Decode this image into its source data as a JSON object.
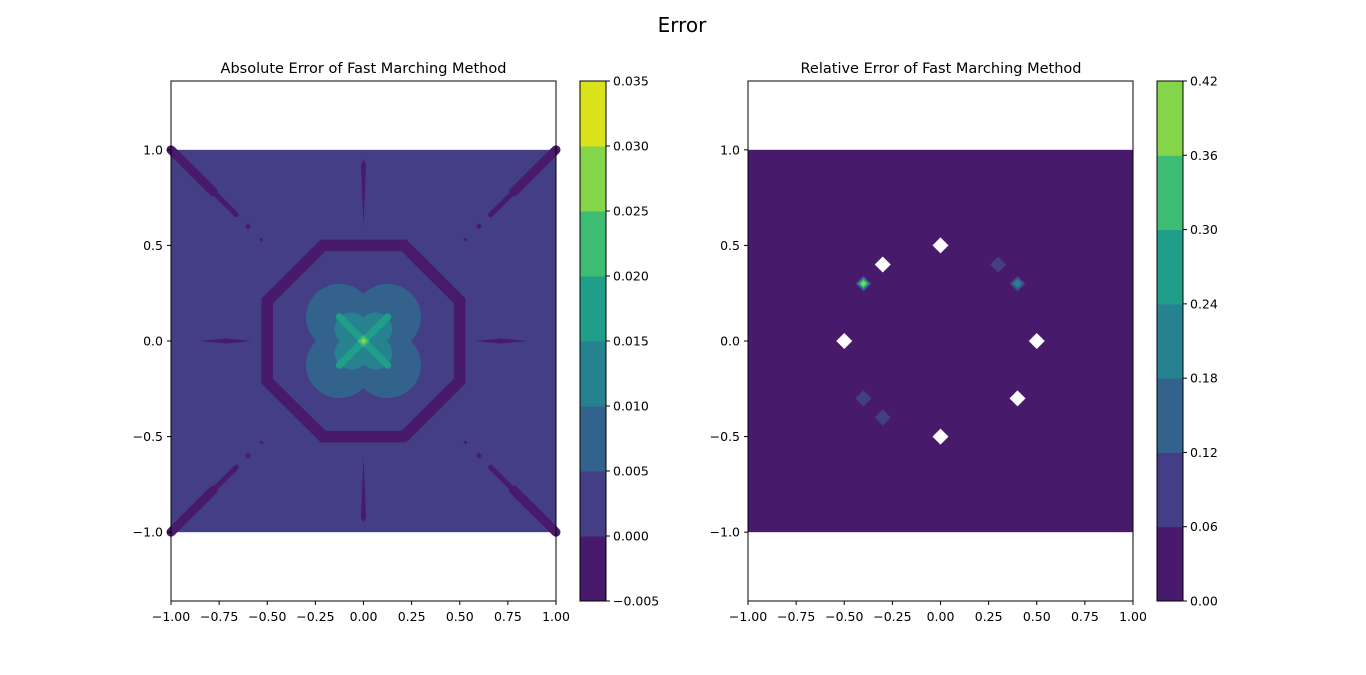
{
  "figure": {
    "suptitle": "Error"
  },
  "colors": {
    "viridis_levels": [
      "#440154",
      "#46327e",
      "#365c8d",
      "#277f8e",
      "#1fa187",
      "#4ac16d",
      "#a0da39",
      "#fde725"
    ],
    "contour_bands": [
      "#481a6c",
      "#433e85",
      "#33638d",
      "#26828e",
      "#1f9e89",
      "#3fbc73",
      "#85d54a",
      "#d9e21b"
    ]
  },
  "chart_data": [
    {
      "type": "contour",
      "title": "Absolute Error of Fast Marching Method",
      "xlabel": "",
      "ylabel": "",
      "xlim": [
        -1.0,
        1.0
      ],
      "ylim": [
        -1.36,
        1.36
      ],
      "data_extent": {
        "x": [
          -1.0,
          1.0
        ],
        "y": [
          -1.0,
          1.0
        ]
      },
      "xticks": [
        -1.0,
        -0.75,
        -0.5,
        -0.25,
        0.0,
        0.25,
        0.5,
        0.75,
        1.0
      ],
      "xtick_labels": [
        "−1.00",
        "−0.75",
        "−0.50",
        "−0.25",
        "0.00",
        "0.25",
        "0.50",
        "0.75",
        "1.00"
      ],
      "yticks": [
        -1.0,
        -0.5,
        0.0,
        0.5,
        1.0
      ],
      "ytick_labels": [
        "−1.0",
        "−0.5",
        "0.0",
        "0.5",
        "1.0"
      ],
      "levels": [
        -0.005,
        0.0,
        0.005,
        0.01,
        0.015,
        0.02,
        0.025,
        0.03,
        0.035
      ],
      "colorbar_labels": [
        "−0.005",
        "0.000",
        "0.005",
        "0.010",
        "0.015",
        "0.020",
        "0.025",
        "0.030",
        "0.035"
      ],
      "background_band": 1,
      "regions": [
        {
          "band": 0,
          "shape": "ring",
          "center": [
            0,
            0
          ],
          "outer_radius": 0.5,
          "inner_radius": 0.44
        },
        {
          "band": 0,
          "shape": "diagonal_streaks",
          "from_radius": 0.55,
          "to_radius": 1.0
        },
        {
          "band": 0,
          "shape": "axis_streaks",
          "from_radius": 0.6,
          "to_radius": 0.95
        },
        {
          "band": 2,
          "shape": "lobes",
          "center": [
            0,
            0
          ],
          "size": 0.28
        },
        {
          "band": 3,
          "shape": "lobes",
          "center": [
            0,
            0
          ],
          "size": 0.14
        },
        {
          "band": 4,
          "shape": "diamond",
          "center": [
            0,
            0
          ],
          "size": 0.06
        },
        {
          "band": 6,
          "shape": "point",
          "center": [
            0,
            0
          ],
          "value": 0.033
        }
      ]
    },
    {
      "type": "contour",
      "title": "Relative Error of Fast Marching Method",
      "xlabel": "",
      "ylabel": "",
      "xlim": [
        -1.0,
        1.0
      ],
      "ylim": [
        -1.36,
        1.36
      ],
      "data_extent": {
        "x": [
          -1.0,
          1.0
        ],
        "y": [
          -1.0,
          1.0
        ]
      },
      "xticks": [
        -1.0,
        -0.75,
        -0.5,
        -0.25,
        0.0,
        0.25,
        0.5,
        0.75,
        1.0
      ],
      "xtick_labels": [
        "−1.00",
        "−0.75",
        "−0.50",
        "−0.25",
        "0.00",
        "0.25",
        "0.50",
        "0.75",
        "1.00"
      ],
      "yticks": [
        -1.0,
        -0.5,
        0.0,
        0.5,
        1.0
      ],
      "ytick_labels": [
        "−1.0",
        "−0.5",
        "0.0",
        "0.5",
        "1.0"
      ],
      "levels": [
        0.0,
        0.06,
        0.12,
        0.18,
        0.24,
        0.3,
        0.36,
        0.42
      ],
      "colorbar_labels": [
        "0.00",
        "0.06",
        "0.12",
        "0.18",
        "0.24",
        "0.30",
        "0.36",
        "0.42"
      ],
      "background_band": 0,
      "nan_points": [
        [
          0.0,
          0.5
        ],
        [
          -0.3,
          0.4
        ],
        [
          -0.5,
          0.0
        ],
        [
          0.5,
          0.0
        ],
        [
          0.4,
          -0.3
        ],
        [
          0.0,
          -0.5
        ]
      ],
      "hotspots": [
        {
          "x": -0.4,
          "y": 0.3,
          "value": 0.38
        },
        {
          "x": 0.4,
          "y": 0.3,
          "value": 0.22
        },
        {
          "x": 0.3,
          "y": 0.4,
          "value": 0.1
        },
        {
          "x": -0.4,
          "y": -0.3,
          "value": 0.1
        },
        {
          "x": -0.3,
          "y": -0.4,
          "value": 0.1
        }
      ]
    }
  ]
}
